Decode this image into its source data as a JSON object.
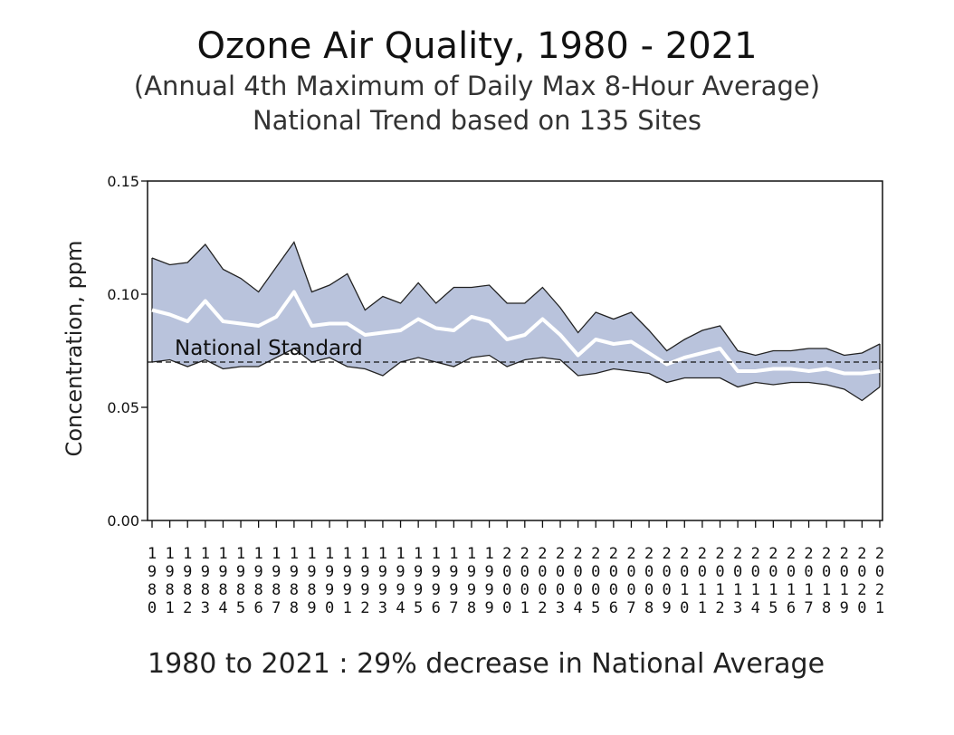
{
  "chart_data": {
    "type": "area",
    "title": "Ozone Air Quality, 1980 - 2021",
    "subtitle_1": "(Annual 4th Maximum of Daily Max 8-Hour Average)",
    "subtitle_2": "National Trend based on 135 Sites",
    "ylabel": "Concentration, ppm",
    "xlabel": "",
    "ylim": [
      0,
      0.15
    ],
    "yticks": [
      "0.00",
      "0.05",
      "0.10",
      "0.15"
    ],
    "x": [
      1980,
      1981,
      1982,
      1983,
      1984,
      1985,
      1986,
      1987,
      1988,
      1989,
      1990,
      1991,
      1992,
      1993,
      1994,
      1995,
      1996,
      1997,
      1998,
      1999,
      2000,
      2001,
      2002,
      2003,
      2004,
      2005,
      2006,
      2007,
      2008,
      2009,
      2010,
      2011,
      2012,
      2013,
      2014,
      2015,
      2016,
      2017,
      2018,
      2019,
      2020,
      2021
    ],
    "series": [
      {
        "name": "",
        "role": "upper_band",
        "values": [
          0.116,
          0.113,
          0.114,
          0.122,
          0.111,
          0.107,
          0.101,
          0.112,
          0.123,
          0.101,
          0.104,
          0.109,
          0.093,
          0.099,
          0.096,
          0.105,
          0.096,
          0.103,
          0.103,
          0.104,
          0.096,
          0.096,
          0.103,
          0.094,
          0.083,
          0.092,
          0.089,
          0.092,
          0.084,
          0.075,
          0.08,
          0.084,
          0.086,
          0.075,
          0.073,
          0.075,
          0.075,
          0.076,
          0.076,
          0.073,
          0.074,
          0.078
        ]
      },
      {
        "name": "",
        "role": "national_average",
        "values": [
          0.093,
          0.091,
          0.088,
          0.097,
          0.088,
          0.087,
          0.086,
          0.09,
          0.101,
          0.086,
          0.087,
          0.087,
          0.082,
          0.083,
          0.084,
          0.089,
          0.085,
          0.084,
          0.09,
          0.088,
          0.08,
          0.082,
          0.089,
          0.082,
          0.073,
          0.08,
          0.078,
          0.079,
          0.074,
          0.069,
          0.072,
          0.074,
          0.076,
          0.066,
          0.066,
          0.067,
          0.067,
          0.066,
          0.067,
          0.065,
          0.065,
          0.066
        ]
      },
      {
        "name": "",
        "role": "lower_band",
        "values": [
          0.07,
          0.071,
          0.068,
          0.071,
          0.067,
          0.068,
          0.068,
          0.072,
          0.076,
          0.07,
          0.072,
          0.068,
          0.067,
          0.064,
          0.07,
          0.072,
          0.07,
          0.068,
          0.072,
          0.073,
          0.068,
          0.071,
          0.072,
          0.071,
          0.064,
          0.065,
          0.067,
          0.066,
          0.065,
          0.061,
          0.063,
          0.063,
          0.063,
          0.059,
          0.061,
          0.06,
          0.061,
          0.061,
          0.06,
          0.058,
          0.053,
          0.059
        ]
      }
    ],
    "reference_line": {
      "label": "National Standard",
      "value": 0.07
    },
    "band_color": "#b9c3dc",
    "average_line_color": "#ffffff",
    "grid": false,
    "legend": "none"
  },
  "footer": "1980 to 2021 :  29% decrease in National Average"
}
